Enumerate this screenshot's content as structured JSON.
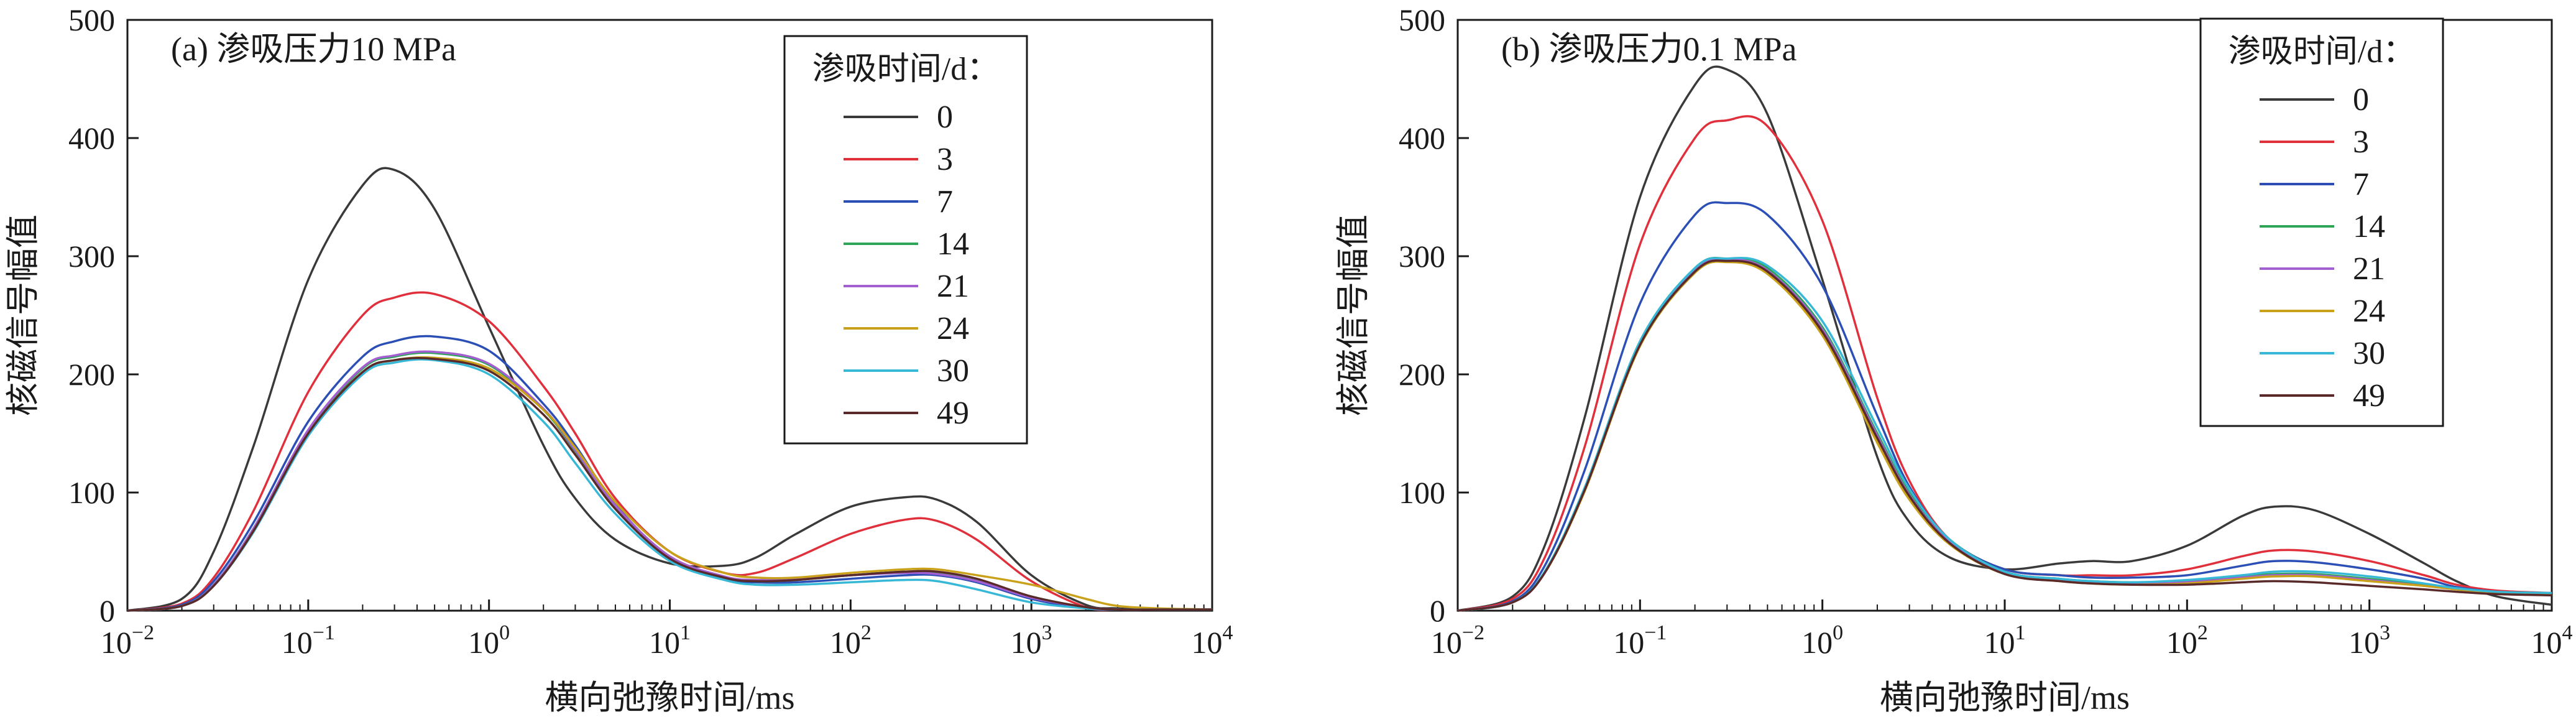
{
  "chart_data": [
    {
      "type": "line",
      "title": "(a) 渗吸压力10 MPa",
      "xlabel": "横向弛豫时间/ms",
      "ylabel": "核磁信号幅值",
      "xscale": "log",
      "xlim": [
        0.01,
        10000
      ],
      "ylim": [
        0,
        500
      ],
      "x_ticks": [
        {
          "base": "10",
          "exp": "−2"
        },
        {
          "base": "10",
          "exp": "−1"
        },
        {
          "base": "10",
          "exp": "0"
        },
        {
          "base": "10",
          "exp": "1"
        },
        {
          "base": "10",
          "exp": "2"
        },
        {
          "base": "10",
          "exp": "3"
        },
        {
          "base": "10",
          "exp": "4"
        }
      ],
      "y_ticks": [
        "0",
        "100",
        "200",
        "300",
        "400",
        "500"
      ],
      "legend": {
        "title": "渗吸时间/d：",
        "position": "top-right"
      },
      "x": [
        0.01,
        0.02,
        0.03,
        0.05,
        0.1,
        0.2,
        0.3,
        0.5,
        1,
        2,
        3,
        5,
        10,
        20,
        30,
        50,
        100,
        200,
        300,
        500,
        1000,
        2000,
        3000,
        5000,
        10000
      ],
      "series": [
        {
          "name": "0",
          "color": "#3a3a3a",
          "values": [
            0,
            10,
            50,
            140,
            280,
            360,
            373,
            340,
            240,
            140,
            95,
            60,
            40,
            38,
            45,
            65,
            88,
            96,
            94,
            75,
            30,
            5,
            2,
            1,
            1
          ]
        },
        {
          "name": "3",
          "color": "#e0303c",
          "values": [
            0,
            6,
            28,
            85,
            185,
            250,
            265,
            268,
            245,
            190,
            150,
            95,
            50,
            32,
            32,
            45,
            65,
            77,
            76,
            60,
            25,
            3,
            1,
            1,
            1
          ]
        },
        {
          "name": "7",
          "color": "#2b4fb5",
          "values": [
            0,
            5,
            25,
            75,
            160,
            215,
            228,
            232,
            220,
            175,
            140,
            90,
            45,
            27,
            24,
            24,
            27,
            30,
            30,
            24,
            10,
            2,
            1,
            1,
            1
          ]
        },
        {
          "name": "14",
          "color": "#2fa55a",
          "values": [
            0,
            4,
            22,
            70,
            152,
            205,
            215,
            218,
            208,
            170,
            135,
            88,
            45,
            28,
            25,
            26,
            30,
            33,
            32,
            26,
            12,
            3,
            1,
            1,
            1
          ]
        },
        {
          "name": "21",
          "color": "#a35fd0",
          "values": [
            0,
            4,
            22,
            70,
            153,
            206,
            216,
            219,
            209,
            171,
            136,
            89,
            46,
            29,
            26,
            27,
            30,
            32,
            31,
            25,
            11,
            3,
            1,
            1,
            1
          ]
        },
        {
          "name": "24",
          "color": "#c9a11b",
          "values": [
            0,
            4,
            21,
            68,
            150,
            202,
            212,
            214,
            205,
            170,
            138,
            92,
            50,
            32,
            28,
            28,
            32,
            35,
            35,
            30,
            22,
            10,
            4,
            2,
            1
          ]
        },
        {
          "name": "30",
          "color": "#36b8d6",
          "values": [
            0,
            4,
            21,
            67,
            148,
            200,
            210,
            212,
            200,
            160,
            125,
            82,
            42,
            26,
            22,
            22,
            24,
            26,
            25,
            18,
            7,
            2,
            1,
            1,
            1
          ]
        },
        {
          "name": "49",
          "color": "#5a2a2a",
          "values": [
            0,
            4,
            21,
            68,
            150,
            202,
            212,
            213,
            203,
            166,
            132,
            86,
            44,
            28,
            25,
            26,
            30,
            33,
            33,
            27,
            12,
            3,
            1,
            1,
            1
          ]
        }
      ]
    },
    {
      "type": "line",
      "title": "(b) 渗吸压力0.1 MPa",
      "xlabel": "横向弛豫时间/ms",
      "ylabel": "核磁信号幅值",
      "xscale": "log",
      "xlim": [
        0.01,
        10000
      ],
      "ylim": [
        0,
        500
      ],
      "x_ticks": [
        {
          "base": "10",
          "exp": "−2"
        },
        {
          "base": "10",
          "exp": "−1"
        },
        {
          "base": "10",
          "exp": "0"
        },
        {
          "base": "10",
          "exp": "1"
        },
        {
          "base": "10",
          "exp": "2"
        },
        {
          "base": "10",
          "exp": "3"
        },
        {
          "base": "10",
          "exp": "4"
        }
      ],
      "y_ticks": [
        "0",
        "100",
        "200",
        "300",
        "400",
        "500"
      ],
      "legend": {
        "title": "渗吸时间/d：",
        "position": "top-right"
      },
      "x": [
        0.01,
        0.02,
        0.03,
        0.05,
        0.1,
        0.2,
        0.3,
        0.5,
        1,
        2,
        3,
        5,
        10,
        20,
        30,
        50,
        100,
        200,
        300,
        500,
        1000,
        2000,
        3000,
        5000,
        10000
      ],
      "series": [
        {
          "name": "0",
          "color": "#3a3a3a",
          "values": [
            0,
            12,
            55,
            165,
            350,
            445,
            458,
            420,
            280,
            130,
            75,
            45,
            35,
            40,
            42,
            42,
            55,
            80,
            88,
            85,
            65,
            40,
            25,
            12,
            5
          ]
        },
        {
          "name": "3",
          "color": "#e0303c",
          "values": [
            0,
            10,
            45,
            140,
            310,
            400,
            415,
            410,
            330,
            180,
            110,
            60,
            35,
            30,
            30,
            30,
            35,
            46,
            51,
            50,
            42,
            30,
            22,
            17,
            15
          ]
        },
        {
          "name": "7",
          "color": "#2b4fb5",
          "values": [
            0,
            8,
            38,
            120,
            260,
            335,
            345,
            335,
            275,
            165,
            105,
            60,
            35,
            30,
            28,
            28,
            30,
            38,
            42,
            41,
            35,
            27,
            20,
            16,
            14
          ]
        },
        {
          "name": "14",
          "color": "#2fa55a",
          "values": [
            0,
            7,
            33,
            105,
            228,
            290,
            298,
            290,
            240,
            150,
            100,
            60,
            33,
            27,
            25,
            24,
            25,
            29,
            31,
            31,
            27,
            22,
            18,
            15,
            14
          ]
        },
        {
          "name": "21",
          "color": "#a35fd0",
          "values": [
            0,
            7,
            32,
            104,
            226,
            288,
            297,
            288,
            238,
            148,
            98,
            58,
            32,
            26,
            24,
            23,
            24,
            28,
            30,
            30,
            26,
            21,
            18,
            15,
            14
          ]
        },
        {
          "name": "24",
          "color": "#c9a11b",
          "values": [
            0,
            7,
            32,
            102,
            224,
            286,
            295,
            285,
            233,
            142,
            94,
            56,
            31,
            25,
            23,
            22,
            23,
            27,
            29,
            29,
            25,
            21,
            18,
            15,
            14
          ]
        },
        {
          "name": "30",
          "color": "#36b8d6",
          "values": [
            0,
            7,
            33,
            105,
            228,
            290,
            298,
            292,
            245,
            155,
            103,
            60,
            33,
            27,
            25,
            24,
            26,
            30,
            33,
            33,
            29,
            23,
            19,
            16,
            15
          ]
        },
        {
          "name": "49",
          "color": "#5a2a2a",
          "values": [
            0,
            7,
            32,
            103,
            225,
            287,
            296,
            287,
            236,
            146,
            97,
            57,
            31,
            25,
            23,
            22,
            22,
            24,
            25,
            24,
            21,
            18,
            16,
            14,
            13
          ]
        }
      ]
    }
  ]
}
